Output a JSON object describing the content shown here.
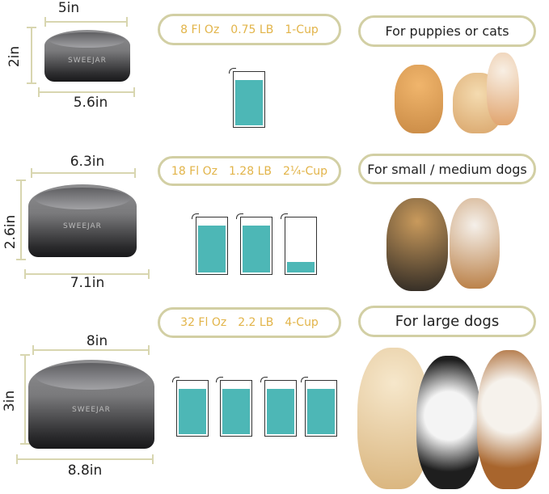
{
  "brand": "SWEEJAR",
  "colors": {
    "spec_text": "#e2b449",
    "pill_border": "#d2cfa4",
    "water": "#4db7b6",
    "dimension_line": "#d8d6b0"
  },
  "rows": [
    {
      "top_width": "5in",
      "height": "2in",
      "bottom_width": "5.6in",
      "specs": [
        "8 Fl Oz",
        "0.75 LB",
        "1-Cup"
      ],
      "cups_fill": [
        1
      ],
      "use": "For puppies or cats",
      "pets": "kitten-and-pomeranian"
    },
    {
      "top_width": "6.3in",
      "height": "2.6in",
      "bottom_width": "7.1in",
      "specs": [
        "18 Fl Oz",
        "1.28 LB",
        "2¼-Cup"
      ],
      "cups_fill": [
        1,
        1,
        0.25
      ],
      "use": "For small / medium dogs",
      "pets": "yorkie-and-beagle"
    },
    {
      "top_width": "8in",
      "height": "3in",
      "bottom_width": "8.8in",
      "specs": [
        "32 Fl Oz",
        "2.2 LB",
        "4-Cup"
      ],
      "cups_fill": [
        1,
        1,
        1,
        1
      ],
      "use": "For large dogs",
      "pets": "golden-retriever-border-collie-beagle"
    }
  ]
}
